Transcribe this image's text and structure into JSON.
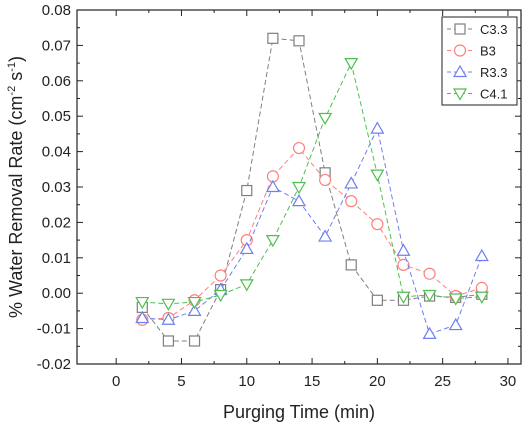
{
  "chart_data": {
    "type": "scatter",
    "xlabel": "Purging Time (min)",
    "ylabel_main": "% Water Removal Rate (cm",
    "ylabel_exp1": "-2",
    "ylabel_mid": " s",
    "ylabel_exp2": "-1",
    "ylabel_end": ")",
    "xlim": [
      -3,
      31
    ],
    "ylim": [
      -0.02,
      0.08
    ],
    "x_ticks": [
      0,
      5,
      10,
      15,
      20,
      25,
      30
    ],
    "x_tick_labels": [
      "0",
      "5",
      "10",
      "15",
      "20",
      "25",
      "30"
    ],
    "y_ticks": [
      -0.02,
      -0.01,
      0.0,
      0.01,
      0.02,
      0.03,
      0.04,
      0.05,
      0.06,
      0.07,
      0.08
    ],
    "y_tick_labels": [
      "-0.02",
      "-0.01",
      "0.00",
      "0.01",
      "0.02",
      "0.03",
      "0.04",
      "0.05",
      "0.06",
      "0.07",
      "0.08"
    ],
    "legend_position": "top-right",
    "series": [
      {
        "name": "C3.3",
        "color": "#7f7f7f",
        "marker": "square",
        "points": [
          [
            2,
            -0.004
          ],
          [
            4,
            -0.0135
          ],
          [
            6,
            -0.0135
          ],
          [
            8,
            0.001
          ],
          [
            10,
            0.029
          ],
          [
            12,
            0.072
          ],
          [
            14,
            0.0713
          ],
          [
            16,
            0.034
          ],
          [
            18,
            0.008
          ],
          [
            20,
            -0.002
          ],
          [
            22,
            -0.002
          ],
          [
            24,
            -0.0008
          ],
          [
            26,
            -0.0012
          ],
          [
            28,
            -0.0003
          ]
        ]
      },
      {
        "name": "B3",
        "color": "#ff7f7f",
        "marker": "circle",
        "points": [
          [
            2,
            -0.0075
          ],
          [
            4,
            -0.007
          ],
          [
            6,
            -0.002
          ],
          [
            8,
            0.005
          ],
          [
            10,
            0.015
          ],
          [
            12,
            0.033
          ],
          [
            14,
            0.041
          ],
          [
            16,
            0.032
          ],
          [
            18,
            0.026
          ],
          [
            20,
            0.0195
          ],
          [
            22,
            0.008
          ],
          [
            24,
            0.0055
          ],
          [
            26,
            -0.0008
          ],
          [
            28,
            0.0015
          ]
        ]
      },
      {
        "name": "R3.3",
        "color": "#6f7fef",
        "marker": "triangle-up",
        "points": [
          [
            2,
            -0.007
          ],
          [
            4,
            -0.0075
          ],
          [
            6,
            -0.005
          ],
          [
            8,
            0.001
          ],
          [
            10,
            0.0125
          ],
          [
            12,
            0.03
          ],
          [
            14,
            0.026
          ],
          [
            16,
            0.016
          ],
          [
            18,
            0.031
          ],
          [
            20,
            0.0465
          ],
          [
            22,
            0.012
          ],
          [
            24,
            -0.0115
          ],
          [
            26,
            -0.009
          ],
          [
            28,
            0.0105
          ]
        ]
      },
      {
        "name": "C4.1",
        "color": "#4fbf4f",
        "marker": "triangle-down",
        "points": [
          [
            2,
            -0.0025
          ],
          [
            4,
            -0.003
          ],
          [
            6,
            -0.0025
          ],
          [
            8,
            -0.0005
          ],
          [
            10,
            0.0025
          ],
          [
            12,
            0.015
          ],
          [
            14,
            0.03
          ],
          [
            16,
            0.0495
          ],
          [
            18,
            0.065
          ],
          [
            20,
            0.0335
          ],
          [
            22,
            -0.001
          ],
          [
            24,
            -0.0005
          ],
          [
            26,
            -0.0015
          ],
          [
            28,
            -0.001
          ]
        ]
      }
    ]
  }
}
